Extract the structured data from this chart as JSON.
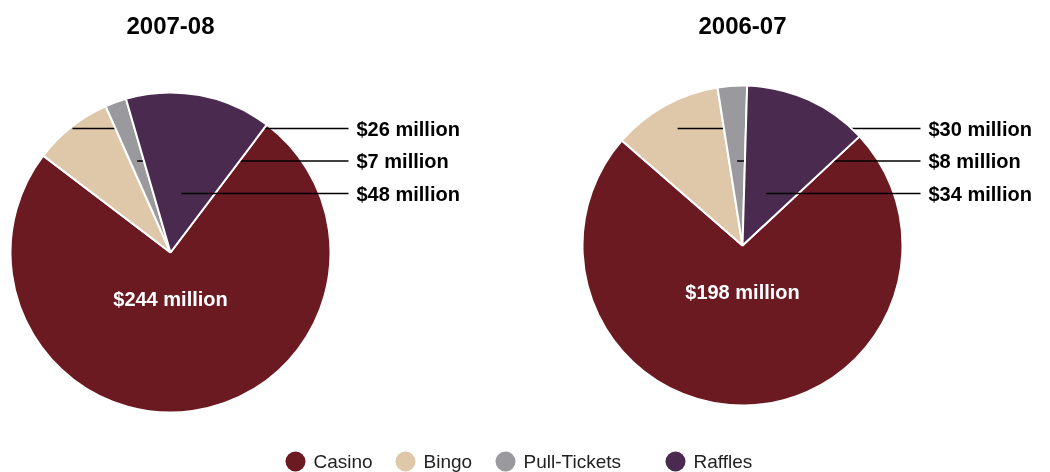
{
  "chart_data": [
    {
      "type": "pie",
      "title": "2007-08",
      "categories": [
        "Casino",
        "Bingo",
        "Pull-Tickets",
        "Raffles"
      ],
      "values": [
        244,
        26,
        7,
        48
      ],
      "colors": [
        "#6b1a22",
        "#dfc8aa",
        "#9a9a9e",
        "#4a2a4e"
      ],
      "value_labels": [
        "$244 million",
        "$26 million",
        "$7 million",
        "$48 million"
      ],
      "legend": "bottom"
    },
    {
      "type": "pie",
      "title": "2006-07",
      "values": [
        198,
        30,
        8,
        34
      ],
      "colors": [
        "#6b1a22",
        "#dfc8aa",
        "#9a9a9e",
        "#4a2a4e"
      ],
      "value_labels": [
        "$198 million",
        "$30 million",
        "$8 million",
        "$34 million"
      ]
    }
  ]
}
